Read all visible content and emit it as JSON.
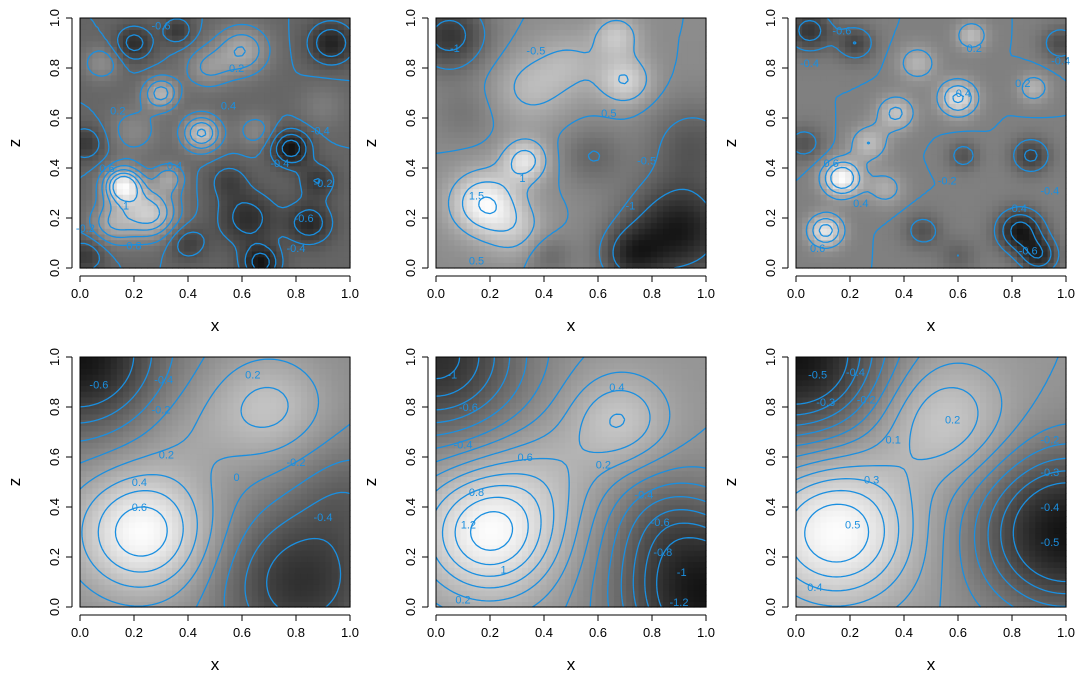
{
  "colors": {
    "contour": "#1a8fe0",
    "background": "#ffffff",
    "image_low": "#000000",
    "image_high": "#ffffff"
  },
  "chart_data": [
    {
      "type": "heatmap",
      "title": "",
      "xlabel": "x",
      "ylabel": "z",
      "xlim": [
        0,
        1
      ],
      "ylim": [
        0,
        1
      ],
      "xticks": [
        "0.0",
        "0.2",
        "0.4",
        "0.6",
        "0.8",
        "1.0"
      ],
      "yticks": [
        "0.0",
        "0.2",
        "0.4",
        "0.6",
        "0.8",
        "1.0"
      ],
      "colormap": "grayscale",
      "grid": false,
      "bumps": [
        {
          "x": 0.16,
          "y": 0.33,
          "h": 1.25,
          "s": 0.05
        },
        {
          "x": 0.26,
          "y": 0.22,
          "h": 0.9,
          "s": 0.07
        },
        {
          "x": 0.12,
          "y": 0.18,
          "h": 0.55,
          "s": 0.06
        },
        {
          "x": 0.33,
          "y": 0.36,
          "h": 0.5,
          "s": 0.04
        },
        {
          "x": 0.3,
          "y": 0.7,
          "h": 0.7,
          "s": 0.045
        },
        {
          "x": 0.45,
          "y": 0.54,
          "h": 0.85,
          "s": 0.05
        },
        {
          "x": 0.6,
          "y": 0.87,
          "h": 0.6,
          "s": 0.07
        },
        {
          "x": 0.47,
          "y": 0.8,
          "h": 0.4,
          "s": 0.06
        },
        {
          "x": 0.08,
          "y": 0.82,
          "h": 0.35,
          "s": 0.05
        },
        {
          "x": 0.2,
          "y": 0.55,
          "h": 0.3,
          "s": 0.07
        },
        {
          "x": 0.65,
          "y": 0.55,
          "h": 0.3,
          "s": 0.05
        },
        {
          "x": 0.9,
          "y": 0.65,
          "h": 0.2,
          "s": 0.06
        },
        {
          "x": 0.78,
          "y": 0.48,
          "h": -0.75,
          "s": 0.05
        },
        {
          "x": 0.62,
          "y": 0.2,
          "h": -0.5,
          "s": 0.08
        },
        {
          "x": 0.85,
          "y": 0.18,
          "h": -0.55,
          "s": 0.06
        },
        {
          "x": 0.67,
          "y": 0.02,
          "h": -0.7,
          "s": 0.05
        },
        {
          "x": 0.93,
          "y": 0.9,
          "h": -0.6,
          "s": 0.06
        },
        {
          "x": 0.88,
          "y": 0.35,
          "h": -0.4,
          "s": 0.05
        },
        {
          "x": 0.55,
          "y": 0.35,
          "h": -0.3,
          "s": 0.05
        },
        {
          "x": 0.2,
          "y": 0.9,
          "h": -0.5,
          "s": 0.05
        },
        {
          "x": 0.02,
          "y": 0.5,
          "h": -0.4,
          "s": 0.05
        },
        {
          "x": 0.4,
          "y": 0.1,
          "h": -0.35,
          "s": 0.05
        },
        {
          "x": 0.02,
          "y": 0.05,
          "h": -0.4,
          "s": 0.05
        },
        {
          "x": 0.36,
          "y": 0.95,
          "h": -0.4,
          "s": 0.04
        }
      ],
      "contour_levels": [
        -0.8,
        -0.6,
        -0.4,
        -0.2,
        0,
        0.2,
        0.4,
        0.6,
        0.8,
        1
      ],
      "contour_labels": [
        {
          "text": "-0.6",
          "x": 0.3,
          "y": 0.97
        },
        {
          "text": "0.2",
          "x": 0.58,
          "y": 0.8
        },
        {
          "text": "0.4",
          "x": 0.55,
          "y": 0.65
        },
        {
          "text": "0.2",
          "x": 0.14,
          "y": 0.63
        },
        {
          "text": "-0.4",
          "x": 0.89,
          "y": 0.55
        },
        {
          "text": "0.4",
          "x": 0.35,
          "y": 0.41
        },
        {
          "text": "0.6",
          "x": 0.1,
          "y": 0.4
        },
        {
          "text": "-0.4",
          "x": 0.74,
          "y": 0.42
        },
        {
          "text": "-0.2",
          "x": 0.9,
          "y": 0.34
        },
        {
          "text": "-0.6",
          "x": 0.83,
          "y": 0.2
        },
        {
          "text": "0.8",
          "x": 0.2,
          "y": 0.09
        },
        {
          "text": "-0.4",
          "x": 0.8,
          "y": 0.08
        },
        {
          "text": "-0.2",
          "x": 0.02,
          "y": 0.16
        },
        {
          "text": "1",
          "x": 0.17,
          "y": 0.25
        }
      ]
    },
    {
      "type": "heatmap",
      "title": "",
      "xlabel": "x",
      "ylabel": "z",
      "xlim": [
        0,
        1
      ],
      "ylim": [
        0,
        1
      ],
      "xticks": [
        "0.0",
        "0.2",
        "0.4",
        "0.6",
        "0.8",
        "1.0"
      ],
      "yticks": [
        "0.0",
        "0.2",
        "0.4",
        "0.6",
        "0.8",
        "1.0"
      ],
      "colormap": "grayscale",
      "grid": false,
      "bumps": [
        {
          "x": 0.18,
          "y": 0.26,
          "h": 1.5,
          "s": 0.09
        },
        {
          "x": 0.33,
          "y": 0.43,
          "h": 1.2,
          "s": 0.06
        },
        {
          "x": 0.3,
          "y": 0.15,
          "h": 0.6,
          "s": 0.08
        },
        {
          "x": 0.7,
          "y": 0.75,
          "h": 1.0,
          "s": 0.07
        },
        {
          "x": 0.67,
          "y": 0.93,
          "h": 0.8,
          "s": 0.06
        },
        {
          "x": 0.35,
          "y": 0.72,
          "h": 0.6,
          "s": 0.1
        },
        {
          "x": 0.5,
          "y": 0.82,
          "h": 0.5,
          "s": 0.09
        },
        {
          "x": 0.9,
          "y": 0.15,
          "h": -1.6,
          "s": 0.14
        },
        {
          "x": 0.72,
          "y": 0.05,
          "h": -1.0,
          "s": 0.08
        },
        {
          "x": 0.05,
          "y": 0.93,
          "h": -1.2,
          "s": 0.1
        },
        {
          "x": 0.95,
          "y": 0.5,
          "h": -0.7,
          "s": 0.12
        },
        {
          "x": 0.58,
          "y": 0.45,
          "h": -0.5,
          "s": 0.08
        },
        {
          "x": 0.1,
          "y": 0.62,
          "h": -0.3,
          "s": 0.08
        },
        {
          "x": 0.42,
          "y": 0.05,
          "h": -0.5,
          "s": 0.06
        }
      ],
      "contour_levels": [
        -1,
        -0.5,
        0,
        0.5,
        1,
        1.5
      ],
      "contour_labels": [
        {
          "text": "-1",
          "x": 0.07,
          "y": 0.88
        },
        {
          "text": "-0.5",
          "x": 0.37,
          "y": 0.87
        },
        {
          "text": "0.5",
          "x": 0.64,
          "y": 0.62
        },
        {
          "text": "1",
          "x": 0.32,
          "y": 0.36
        },
        {
          "text": "1.5",
          "x": 0.15,
          "y": 0.29
        },
        {
          "text": "-0.5",
          "x": 0.78,
          "y": 0.43
        },
        {
          "text": "-1",
          "x": 0.72,
          "y": 0.25
        },
        {
          "text": "0.5",
          "x": 0.15,
          "y": 0.03
        }
      ]
    },
    {
      "type": "heatmap",
      "title": "",
      "xlabel": "x",
      "ylabel": "z",
      "xlim": [
        0,
        1
      ],
      "ylim": [
        0,
        1
      ],
      "xticks": [
        "0.0",
        "0.2",
        "0.4",
        "0.6",
        "0.8",
        "1.0"
      ],
      "yticks": [
        "0.0",
        "0.2",
        "0.4",
        "0.6",
        "0.8",
        "1.0"
      ],
      "colormap": "grayscale",
      "grid": false,
      "bumps": [
        {
          "x": 0.17,
          "y": 0.36,
          "h": 0.85,
          "s": 0.05
        },
        {
          "x": 0.11,
          "y": 0.15,
          "h": 0.7,
          "s": 0.045
        },
        {
          "x": 0.27,
          "y": 0.5,
          "h": 0.4,
          "s": 0.05
        },
        {
          "x": 0.37,
          "y": 0.62,
          "h": 0.45,
          "s": 0.05
        },
        {
          "x": 0.6,
          "y": 0.68,
          "h": 0.65,
          "s": 0.05
        },
        {
          "x": 0.45,
          "y": 0.82,
          "h": 0.35,
          "s": 0.05
        },
        {
          "x": 0.65,
          "y": 0.93,
          "h": 0.4,
          "s": 0.04
        },
        {
          "x": 0.88,
          "y": 0.72,
          "h": 0.35,
          "s": 0.04
        },
        {
          "x": 0.33,
          "y": 0.32,
          "h": 0.3,
          "s": 0.05
        },
        {
          "x": 0.83,
          "y": 0.15,
          "h": -0.7,
          "s": 0.06
        },
        {
          "x": 0.9,
          "y": 0.05,
          "h": -0.55,
          "s": 0.05
        },
        {
          "x": 0.05,
          "y": 0.95,
          "h": -0.5,
          "s": 0.06
        },
        {
          "x": 0.22,
          "y": 0.9,
          "h": -0.4,
          "s": 0.05
        },
        {
          "x": 0.87,
          "y": 0.45,
          "h": -0.45,
          "s": 0.05
        },
        {
          "x": 0.62,
          "y": 0.45,
          "h": -0.3,
          "s": 0.04
        },
        {
          "x": 0.47,
          "y": 0.15,
          "h": -0.3,
          "s": 0.05
        },
        {
          "x": 0.03,
          "y": 0.5,
          "h": -0.3,
          "s": 0.05
        },
        {
          "x": 0.98,
          "y": 0.9,
          "h": -0.35,
          "s": 0.05
        },
        {
          "x": 0.6,
          "y": 0.05,
          "h": -0.2,
          "s": 0.05
        }
      ],
      "contour_levels": [
        -0.6,
        -0.4,
        -0.2,
        0,
        0.2,
        0.4,
        0.6
      ],
      "contour_labels": [
        {
          "text": "-0.6",
          "x": 0.17,
          "y": 0.95
        },
        {
          "text": "-0.4",
          "x": 0.05,
          "y": 0.82
        },
        {
          "text": "0.2",
          "x": 0.66,
          "y": 0.88
        },
        {
          "text": "-0.4",
          "x": 0.98,
          "y": 0.83
        },
        {
          "text": "0.2",
          "x": 0.84,
          "y": 0.74
        },
        {
          "text": "0.4",
          "x": 0.62,
          "y": 0.7
        },
        {
          "text": "0.6",
          "x": 0.13,
          "y": 0.42
        },
        {
          "text": "0.4",
          "x": 0.24,
          "y": 0.26
        },
        {
          "text": "0.6",
          "x": 0.08,
          "y": 0.08
        },
        {
          "text": "-0.2",
          "x": 0.56,
          "y": 0.35
        },
        {
          "text": "-0.4",
          "x": 0.94,
          "y": 0.31
        },
        {
          "text": "-0.4",
          "x": 0.82,
          "y": 0.24
        },
        {
          "text": "-0.6",
          "x": 0.86,
          "y": 0.07
        }
      ]
    },
    {
      "type": "heatmap",
      "title": "",
      "xlabel": "x",
      "ylabel": "z",
      "xlim": [
        0,
        1
      ],
      "ylim": [
        0,
        1
      ],
      "xticks": [
        "0.0",
        "0.2",
        "0.4",
        "0.6",
        "0.8",
        "1.0"
      ],
      "yticks": [
        "0.0",
        "0.2",
        "0.4",
        "0.6",
        "0.8",
        "1.0"
      ],
      "colormap": "grayscale",
      "grid": false,
      "bumps": [
        {
          "x": 0.23,
          "y": 0.3,
          "h": 0.95,
          "s": 0.17
        },
        {
          "x": 0.7,
          "y": 0.8,
          "h": 0.45,
          "s": 0.15
        },
        {
          "x": 0.4,
          "y": 0.7,
          "h": 0.15,
          "s": 0.15
        },
        {
          "x": 0.0,
          "y": 1.0,
          "h": -1.0,
          "s": 0.2
        },
        {
          "x": 0.82,
          "y": 0.1,
          "h": -0.75,
          "s": 0.2
        },
        {
          "x": 1.0,
          "y": 0.45,
          "h": -0.3,
          "s": 0.15
        }
      ],
      "contour_levels": [
        -0.6,
        -0.4,
        -0.2,
        0,
        0.2,
        0.4,
        0.6,
        0.8
      ],
      "contour_labels": [
        {
          "text": "-0.6",
          "x": 0.07,
          "y": 0.89
        },
        {
          "text": "-0.4",
          "x": 0.31,
          "y": 0.91
        },
        {
          "text": "-0.2",
          "x": 0.3,
          "y": 0.79
        },
        {
          "text": "0.2",
          "x": 0.64,
          "y": 0.93
        },
        {
          "text": "0.2",
          "x": 0.32,
          "y": 0.61
        },
        {
          "text": "0.4",
          "x": 0.22,
          "y": 0.5
        },
        {
          "text": "0.6",
          "x": 0.22,
          "y": 0.4
        },
        {
          "text": "-0.2",
          "x": 0.8,
          "y": 0.58
        },
        {
          "text": "-0.4",
          "x": 0.9,
          "y": 0.36
        },
        {
          "text": "0",
          "x": 0.58,
          "y": 0.52
        }
      ]
    },
    {
      "type": "heatmap",
      "title": "",
      "xlabel": "x",
      "ylabel": "z",
      "xlim": [
        0,
        1
      ],
      "ylim": [
        0,
        1
      ],
      "xticks": [
        "0.0",
        "0.2",
        "0.4",
        "0.6",
        "0.8",
        "1.0"
      ],
      "yticks": [
        "0.0",
        "0.2",
        "0.4",
        "0.6",
        "0.8",
        "1.0"
      ],
      "colormap": "grayscale",
      "grid": false,
      "bumps": [
        {
          "x": 0.2,
          "y": 0.3,
          "h": 1.3,
          "s": 0.18
        },
        {
          "x": 0.68,
          "y": 0.75,
          "h": 0.6,
          "s": 0.13
        },
        {
          "x": 0.43,
          "y": 0.55,
          "h": 0.25,
          "s": 0.15
        },
        {
          "x": 0.0,
          "y": 1.0,
          "h": -1.3,
          "s": 0.22
        },
        {
          "x": 1.0,
          "y": 0.05,
          "h": -1.6,
          "s": 0.22
        },
        {
          "x": 0.85,
          "y": 0.35,
          "h": -0.4,
          "s": 0.15
        }
      ],
      "contour_levels": [
        -1.2,
        -1,
        -0.8,
        -0.6,
        -0.4,
        -0.2,
        0,
        0.2,
        0.4,
        0.6,
        0.8,
        1,
        1.2
      ],
      "contour_labels": [
        {
          "text": "-1",
          "x": 0.06,
          "y": 0.93
        },
        {
          "text": "-0.6",
          "x": 0.12,
          "y": 0.8
        },
        {
          "text": "-0.4",
          "x": 0.1,
          "y": 0.65
        },
        {
          "text": "0.4",
          "x": 0.67,
          "y": 0.88
        },
        {
          "text": "0.2",
          "x": 0.62,
          "y": 0.57
        },
        {
          "text": "0.6",
          "x": 0.33,
          "y": 0.6
        },
        {
          "text": "0.8",
          "x": 0.15,
          "y": 0.46
        },
        {
          "text": "1.2",
          "x": 0.12,
          "y": 0.33
        },
        {
          "text": "1",
          "x": 0.25,
          "y": 0.15
        },
        {
          "text": "-0.4",
          "x": 0.77,
          "y": 0.45
        },
        {
          "text": "-0.6",
          "x": 0.83,
          "y": 0.34
        },
        {
          "text": "-0.8",
          "x": 0.84,
          "y": 0.22
        },
        {
          "text": "-1",
          "x": 0.91,
          "y": 0.14
        },
        {
          "text": "-1.2",
          "x": 0.9,
          "y": 0.02
        },
        {
          "text": "0.2",
          "x": 0.1,
          "y": 0.03
        }
      ]
    },
    {
      "type": "heatmap",
      "title": "",
      "xlabel": "x",
      "ylabel": "z",
      "xlim": [
        0,
        1
      ],
      "ylim": [
        0,
        1
      ],
      "xticks": [
        "0.0",
        "0.2",
        "0.4",
        "0.6",
        "0.8",
        "1.0"
      ],
      "yticks": [
        "0.0",
        "0.2",
        "0.4",
        "0.6",
        "0.8",
        "1.0"
      ],
      "colormap": "grayscale",
      "grid": false,
      "bumps": [
        {
          "x": 0.15,
          "y": 0.3,
          "h": 0.6,
          "s": 0.2
        },
        {
          "x": 0.55,
          "y": 0.75,
          "h": 0.3,
          "s": 0.17
        },
        {
          "x": 0.0,
          "y": 1.0,
          "h": -0.75,
          "s": 0.22
        },
        {
          "x": 1.0,
          "y": 0.3,
          "h": -0.75,
          "s": 0.22
        }
      ],
      "contour_levels": [
        -0.5,
        -0.4,
        -0.3,
        -0.2,
        -0.1,
        0,
        0.1,
        0.2,
        0.3,
        0.4,
        0.5
      ],
      "contour_labels": [
        {
          "text": "-0.5",
          "x": 0.08,
          "y": 0.93
        },
        {
          "text": "-0.4",
          "x": 0.22,
          "y": 0.94
        },
        {
          "text": "-0.3",
          "x": 0.11,
          "y": 0.82
        },
        {
          "text": "-0.2",
          "x": 0.26,
          "y": 0.83
        },
        {
          "text": "0.2",
          "x": 0.58,
          "y": 0.75
        },
        {
          "text": "0.1",
          "x": 0.36,
          "y": 0.67
        },
        {
          "text": "0.3",
          "x": 0.28,
          "y": 0.51
        },
        {
          "text": "0.5",
          "x": 0.21,
          "y": 0.33
        },
        {
          "text": "0.4",
          "x": 0.07,
          "y": 0.08
        },
        {
          "text": "-0.2",
          "x": 0.94,
          "y": 0.67
        },
        {
          "text": "-0.3",
          "x": 0.94,
          "y": 0.54
        },
        {
          "text": "-0.4",
          "x": 0.94,
          "y": 0.4
        },
        {
          "text": "-0.5",
          "x": 0.94,
          "y": 0.26
        }
      ]
    }
  ]
}
